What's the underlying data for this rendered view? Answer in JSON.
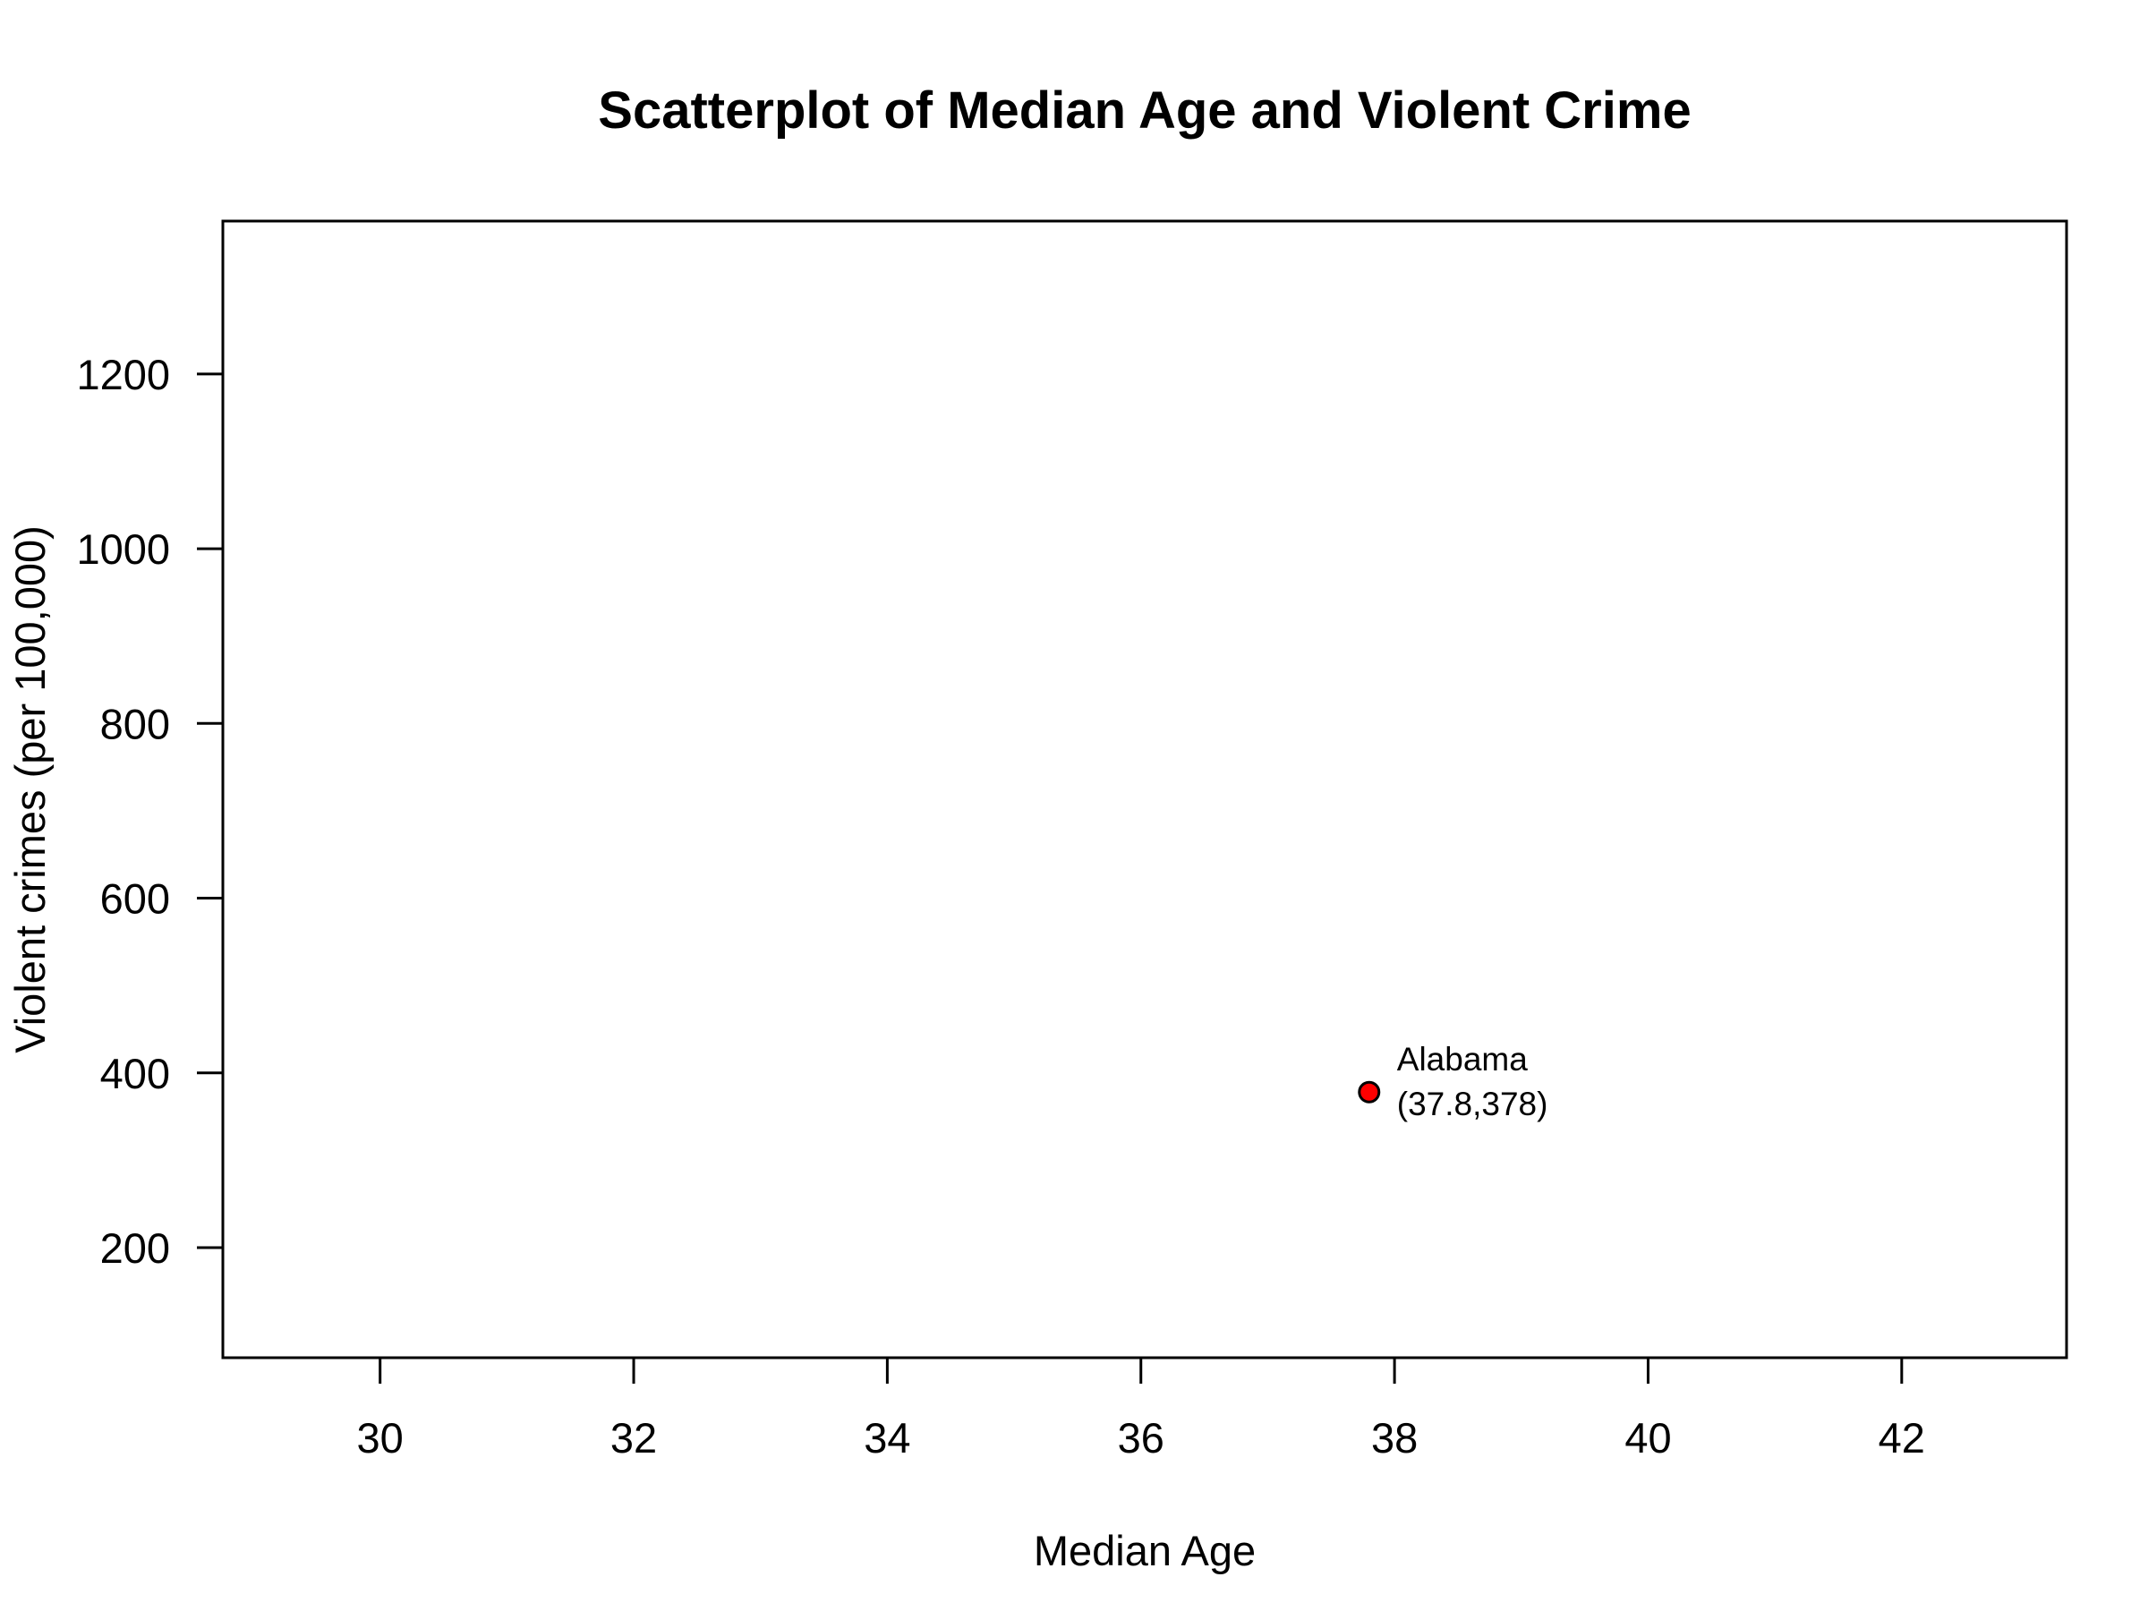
{
  "chart_data": {
    "type": "scatter",
    "title": "Scatterplot of Median Age and Violent Crime",
    "xlabel": "Median Age",
    "ylabel": "Violent crimes (per 100,000)",
    "xlim": [
      28.76,
      43.3
    ],
    "ylim": [
      74,
      1375
    ],
    "x_ticks": [
      30,
      32,
      34,
      36,
      38,
      40,
      42
    ],
    "y_ticks": [
      200,
      400,
      600,
      800,
      1000,
      1200
    ],
    "x_tick_labels": [
      "30",
      "32",
      "34",
      "36",
      "38",
      "40",
      "42"
    ],
    "y_tick_labels": [
      "200",
      "400",
      "600",
      "800",
      "1000",
      "1200"
    ],
    "grid": false,
    "points": [
      {
        "x": 37.8,
        "y": 378,
        "label": "Alabama",
        "coord_label": "(37.8,378)",
        "color": "#ff0000"
      }
    ]
  }
}
